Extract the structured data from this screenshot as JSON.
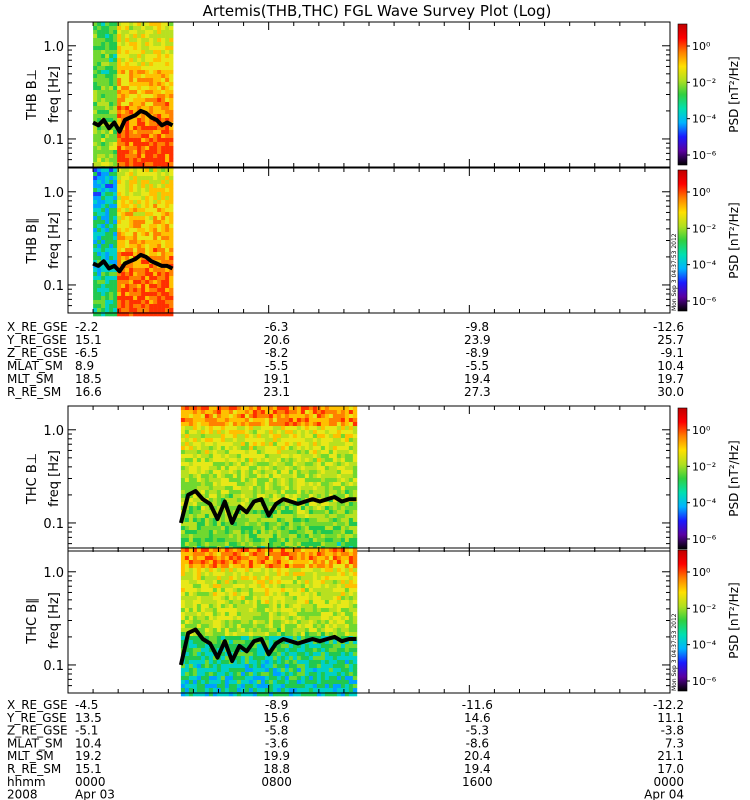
{
  "title": "Artemis(THB,THC) FGL Wave Survey Plot (Log)",
  "colors": {
    "trace": "#000000",
    "colormap": [
      "#000000",
      "#5a00a0",
      "#1a1aff",
      "#00b4ff",
      "#00e0b0",
      "#30d040",
      "#b0e020",
      "#ffe000",
      "#ff8000",
      "#ff0000",
      "#c00000"
    ]
  },
  "chart_data": [
    {
      "type": "heatmap",
      "panel": "THB B⊥",
      "ylabel_probe": "THB B⊥",
      "ylabel_unit": "freq [Hz]",
      "y_scale": "log",
      "y_ticks": [
        "1.0",
        "0.1"
      ],
      "colorbar_label": "PSD [nT²/Hz]",
      "colorbar_ticks": [
        "10⁰",
        "10⁻²",
        "10⁻⁴",
        "10⁻⁶"
      ],
      "data_span_hhmm": [
        "0100",
        "0410"
      ],
      "stamp": "",
      "trace_hz": [
        0.15,
        0.14,
        0.16,
        0.13,
        0.15,
        0.12,
        0.16,
        0.17,
        0.18,
        0.2,
        0.19,
        0.17,
        0.16,
        0.14,
        0.15,
        0.14
      ]
    },
    {
      "type": "heatmap",
      "panel": "THB B∥",
      "ylabel_probe": "THB B∥",
      "ylabel_unit": "freq [Hz]",
      "y_scale": "log",
      "y_ticks": [
        "1.0",
        "0.1"
      ],
      "colorbar_label": "PSD [nT²/Hz]",
      "colorbar_ticks": [
        "10⁰",
        "10⁻²",
        "10⁻⁴",
        "10⁻⁶"
      ],
      "data_span_hhmm": [
        "0100",
        "0410"
      ],
      "stamp": "Mon Sep 3 04:37:53 2012",
      "trace_hz": [
        0.17,
        0.16,
        0.18,
        0.15,
        0.16,
        0.14,
        0.17,
        0.18,
        0.19,
        0.21,
        0.2,
        0.18,
        0.17,
        0.16,
        0.16,
        0.15
      ]
    },
    {
      "type": "heatmap",
      "panel": "THC B⊥",
      "ylabel_probe": "THC B⊥",
      "ylabel_unit": "freq [Hz]",
      "y_scale": "log",
      "y_ticks": [
        "1.0",
        "0.1"
      ],
      "colorbar_label": "PSD [nT²/Hz]",
      "colorbar_ticks": [
        "10⁰",
        "10⁻²",
        "10⁻⁴",
        "10⁻⁶"
      ],
      "data_span_hhmm": [
        "0430",
        "1130"
      ],
      "stamp": "",
      "trace_hz": [
        0.1,
        0.2,
        0.22,
        0.18,
        0.16,
        0.11,
        0.17,
        0.1,
        0.15,
        0.13,
        0.17,
        0.18,
        0.12,
        0.16,
        0.18,
        0.17,
        0.16,
        0.17,
        0.18,
        0.17,
        0.18,
        0.19,
        0.17,
        0.18,
        0.18
      ]
    },
    {
      "type": "heatmap",
      "panel": "THC B∥",
      "ylabel_probe": "THC B∥",
      "ylabel_unit": "freq [Hz]",
      "y_scale": "log",
      "y_ticks": [
        "1.0",
        "0.1"
      ],
      "colorbar_label": "PSD [nT²/Hz]",
      "colorbar_ticks": [
        "10⁰",
        "10⁻²",
        "10⁻⁴",
        "10⁻⁶"
      ],
      "data_span_hhmm": [
        "0430",
        "1130"
      ],
      "stamp": "Mon Sep 3 04:37:53 2012",
      "trace_hz": [
        0.1,
        0.22,
        0.24,
        0.19,
        0.17,
        0.12,
        0.18,
        0.11,
        0.16,
        0.14,
        0.18,
        0.19,
        0.13,
        0.17,
        0.19,
        0.18,
        0.17,
        0.18,
        0.19,
        0.18,
        0.19,
        0.2,
        0.18,
        0.19,
        0.19
      ]
    }
  ],
  "ephemeris_thb": {
    "rows": [
      {
        "label": "X_RE_GSE",
        "values": [
          "-2.2",
          "-6.3",
          "-9.8",
          "-12.6"
        ]
      },
      {
        "label": "Y_RE_GSE",
        "values": [
          "15.1",
          "20.6",
          "23.9",
          "25.7"
        ]
      },
      {
        "label": "Z_RE_GSE",
        "values": [
          "-6.5",
          "-8.2",
          "-8.9",
          "-9.1"
        ]
      },
      {
        "label": "MLAT_SM",
        "values": [
          "8.9",
          "-5.5",
          "-5.5",
          "10.4"
        ]
      },
      {
        "label": "MLT_SM",
        "values": [
          "18.5",
          "19.1",
          "19.4",
          "19.7"
        ]
      },
      {
        "label": "R_RE_SM",
        "values": [
          "16.6",
          "23.1",
          "27.3",
          "30.0"
        ]
      }
    ]
  },
  "ephemeris_thc": {
    "rows": [
      {
        "label": "X_RE_GSE",
        "values": [
          "-4.5",
          "-8.9",
          "-11.6",
          "-12.2"
        ]
      },
      {
        "label": "Y_RE_GSE",
        "values": [
          "13.5",
          "15.6",
          "14.6",
          "11.1"
        ]
      },
      {
        "label": "Z_RE_GSE",
        "values": [
          "-5.1",
          "-5.8",
          "-5.3",
          "-3.8"
        ]
      },
      {
        "label": "MLAT_SM",
        "values": [
          "10.4",
          "-3.6",
          "-8.6",
          "7.3"
        ]
      },
      {
        "label": "MLT_SM",
        "values": [
          "19.2",
          "19.9",
          "20.4",
          "21.1"
        ]
      },
      {
        "label": "R_RE_SM",
        "values": [
          "15.1",
          "18.8",
          "19.4",
          "17.0"
        ]
      },
      {
        "label": "hhmm",
        "values": [
          "0000",
          "0800",
          "1600",
          "0000"
        ]
      },
      {
        "label": "2008",
        "values": [
          "Apr 03",
          "",
          "",
          "Apr 04"
        ]
      }
    ]
  }
}
